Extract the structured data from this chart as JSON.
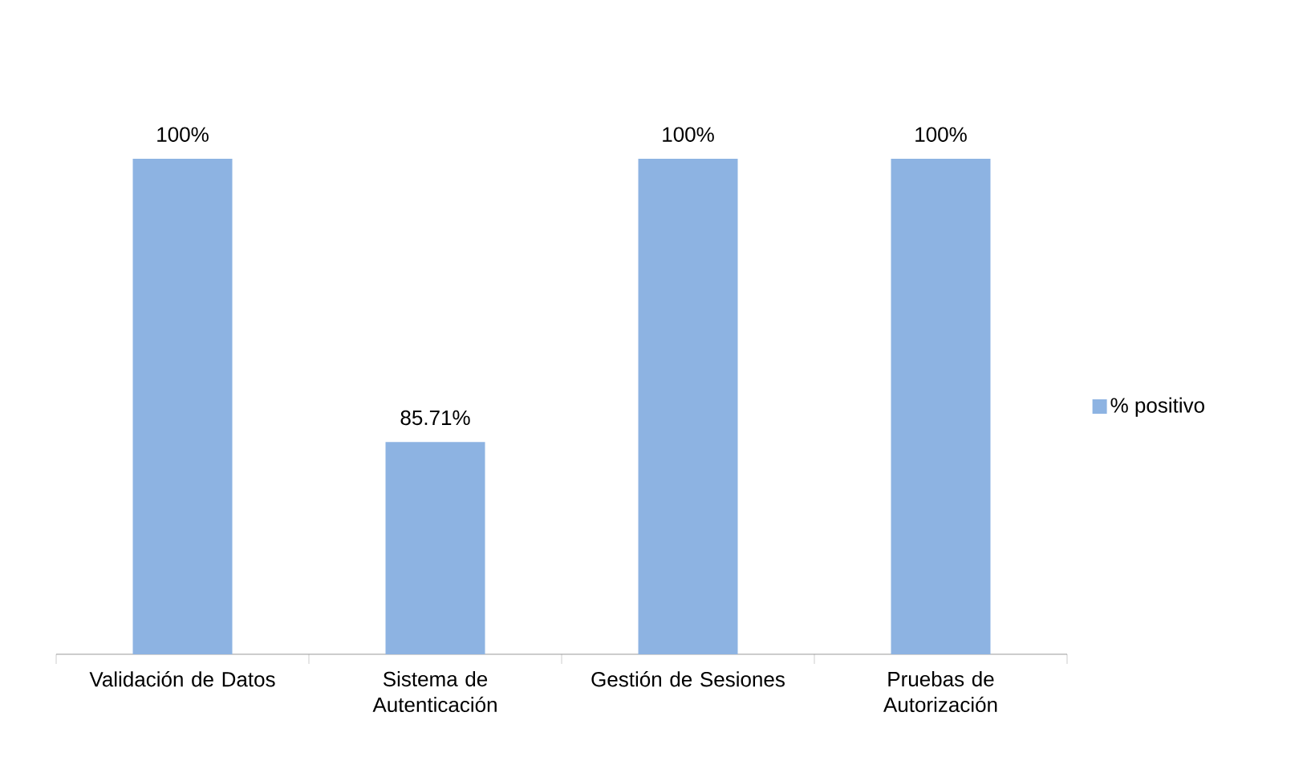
{
  "chart_data": {
    "type": "bar",
    "categories": [
      "Validación de Datos",
      "Sistema de Autenticación",
      "Gestión de Sesiones",
      "Pruebas de Autorización"
    ],
    "series": [
      {
        "name": "% positivo",
        "color": "#8db3e2",
        "values": [
          100,
          85.71,
          100,
          100
        ],
        "value_labels": [
          "100%",
          "85.71%",
          "100%",
          "100%"
        ]
      }
    ],
    "ylim": [
      75,
      100
    ],
    "legend": "right"
  }
}
